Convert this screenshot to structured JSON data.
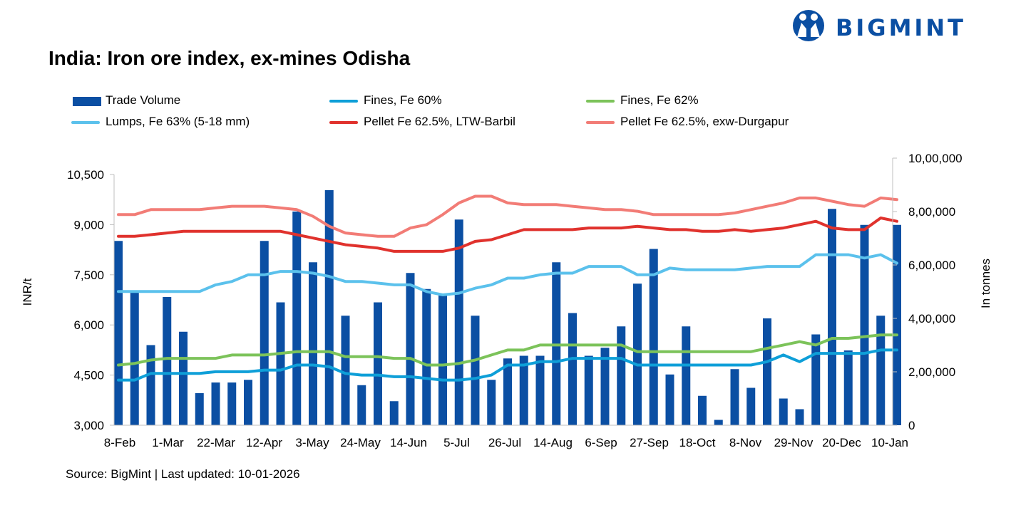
{
  "header": {
    "title": "India: Iron ore index, ex-mines Odisha",
    "brand": "BIGMINT",
    "brand_color": "#0b4fa3"
  },
  "footer": {
    "source": "Source: BigMint | Last updated: 10-01-2026"
  },
  "chart_data": {
    "type": "bar+line",
    "title": "India: Iron ore index, ex-mines Odisha",
    "ylabel": "INR/t",
    "y2label": "In tonnes",
    "ylim": [
      3000,
      10500
    ],
    "yticks": [
      3000,
      4500,
      6000,
      7500,
      9000,
      10500
    ],
    "ytick_labels": [
      "3,000",
      "4,500",
      "6,000",
      "7,500",
      "9,000",
      "10,500"
    ],
    "y2lim": [
      0,
      1000000
    ],
    "y2ticks": [
      0,
      200000,
      400000,
      600000,
      800000,
      1000000
    ],
    "y2tick_labels": [
      "0",
      "2,00,000",
      "4,00,000",
      "6,00,000",
      "8,00,000",
      "10,00,000"
    ],
    "xtick_labels": [
      "8-Feb",
      "1-Mar",
      "22-Mar",
      "12-Apr",
      "3-May",
      "24-May",
      "14-Jun",
      "5-Jul",
      "26-Jul",
      "14-Aug",
      "6-Sep",
      "27-Sep",
      "18-Oct",
      "8-Nov",
      "29-Nov",
      "20-Dec",
      "10-Jan"
    ],
    "legend_position": "top",
    "grid": false,
    "series": [
      {
        "name": "Trade Volume",
        "kind": "bar",
        "axis": "right",
        "color": "#0b4fa3",
        "values": [
          690000,
          500000,
          300000,
          480000,
          350000,
          120000,
          160000,
          160000,
          170000,
          690000,
          460000,
          800000,
          610000,
          880000,
          410000,
          150000,
          460000,
          90000,
          570000,
          510000,
          490000,
          770000,
          410000,
          170000,
          250000,
          260000,
          260000,
          610000,
          420000,
          260000,
          290000,
          370000,
          530000,
          660000,
          190000,
          370000,
          110000,
          20000,
          210000,
          140000,
          400000,
          100000,
          60000,
          340000,
          810000,
          280000,
          750000,
          410000,
          750000
        ]
      },
      {
        "name": "Fines, Fe 60%",
        "kind": "line",
        "axis": "left",
        "color": "#0e9fd8",
        "values": [
          4350,
          4350,
          4550,
          4550,
          4550,
          4550,
          4600,
          4600,
          4600,
          4650,
          4650,
          4800,
          4800,
          4750,
          4550,
          4500,
          4500,
          4450,
          4450,
          4400,
          4350,
          4350,
          4400,
          4500,
          4800,
          4800,
          4900,
          4900,
          5000,
          5000,
          5000,
          5000,
          4800,
          4800,
          4800,
          4800,
          4800,
          4800,
          4800,
          4800,
          4900,
          5100,
          4900,
          5150,
          5150,
          5150,
          5150,
          5250,
          5250
        ]
      },
      {
        "name": "Fines, Fe 62%",
        "kind": "line",
        "axis": "left",
        "color": "#7cc35a",
        "values": [
          4800,
          4850,
          4950,
          5000,
          5000,
          5000,
          5000,
          5100,
          5100,
          5100,
          5150,
          5200,
          5200,
          5200,
          5050,
          5050,
          5050,
          5000,
          5000,
          4800,
          4800,
          4850,
          4950,
          5100,
          5250,
          5250,
          5400,
          5400,
          5400,
          5400,
          5400,
          5400,
          5200,
          5200,
          5200,
          5200,
          5200,
          5200,
          5200,
          5200,
          5300,
          5400,
          5500,
          5400,
          5600,
          5600,
          5650,
          5700,
          5700
        ]
      },
      {
        "name": "Lumps, Fe 63% (5-18 mm)",
        "kind": "line",
        "axis": "left",
        "color": "#5bc1ec",
        "values": [
          7000,
          7000,
          7000,
          7000,
          7000,
          7000,
          7200,
          7300,
          7500,
          7500,
          7600,
          7600,
          7550,
          7450,
          7300,
          7300,
          7250,
          7200,
          7200,
          7000,
          6900,
          6950,
          7100,
          7200,
          7400,
          7400,
          7500,
          7550,
          7550,
          7750,
          7750,
          7750,
          7500,
          7500,
          7700,
          7650,
          7650,
          7650,
          7650,
          7700,
          7750,
          7750,
          7750,
          8100,
          8100,
          8100,
          8000,
          8100,
          7850
        ]
      },
      {
        "name": "Pellet Fe 62.5%, LTW-Barbil",
        "kind": "line",
        "axis": "left",
        "color": "#e0322d",
        "values": [
          8650,
          8650,
          8700,
          8750,
          8800,
          8800,
          8800,
          8800,
          8800,
          8800,
          8800,
          8700,
          8600,
          8500,
          8400,
          8350,
          8300,
          8200,
          8200,
          8200,
          8200,
          8300,
          8500,
          8550,
          8700,
          8850,
          8850,
          8850,
          8850,
          8900,
          8900,
          8900,
          8950,
          8900,
          8850,
          8850,
          8800,
          8800,
          8850,
          8800,
          8850,
          8900,
          9000,
          9100,
          8900,
          8850,
          8850,
          9200,
          9100
        ]
      },
      {
        "name": "Pellet Fe  62.5%, exw-Durgapur",
        "kind": "line",
        "axis": "left",
        "color": "#f27c76",
        "values": [
          9300,
          9300,
          9450,
          9450,
          9450,
          9450,
          9500,
          9550,
          9550,
          9550,
          9500,
          9450,
          9250,
          8950,
          8750,
          8700,
          8650,
          8650,
          8900,
          9000,
          9300,
          9650,
          9850,
          9850,
          9650,
          9600,
          9600,
          9600,
          9550,
          9500,
          9450,
          9450,
          9400,
          9300,
          9300,
          9300,
          9300,
          9300,
          9350,
          9450,
          9550,
          9650,
          9800,
          9800,
          9700,
          9600,
          9550,
          9800,
          9750
        ]
      }
    ]
  }
}
